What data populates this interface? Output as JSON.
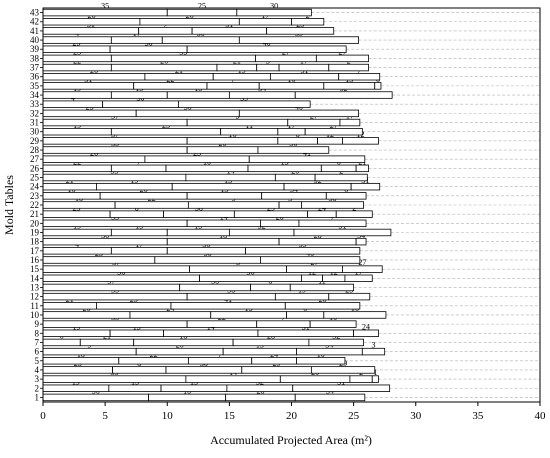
{
  "chart_data": {
    "type": "bar",
    "orientation": "horizontal",
    "stacked": true,
    "xlabel": "Accumulated Projected Area (m²)",
    "ylabel": "Mold Tables",
    "xlim": [
      0,
      40
    ],
    "xticks": [
      0,
      5,
      10,
      15,
      20,
      25,
      30,
      35,
      40
    ],
    "grid": "dashed horizontal",
    "categories": [
      "1",
      "2",
      "3",
      "4",
      "5",
      "6",
      "7",
      "8",
      "9",
      "10",
      "11",
      "12",
      "13",
      "14",
      "15",
      "16",
      "17",
      "18",
      "19",
      "20",
      "21",
      "22",
      "23",
      "24",
      "25",
      "26",
      "27",
      "28",
      "29",
      "30",
      "31",
      "32",
      "33",
      "34",
      "35",
      "36",
      "37",
      "38",
      "39",
      "40",
      "41",
      "42",
      "43"
    ],
    "rows": [
      {
        "table": "1",
        "segments": [
          {
            "id": "36",
            "value": 8.5
          },
          {
            "id": "18",
            "value": 6.2
          },
          {
            "id": "28",
            "value": 5.6
          },
          {
            "id": "34",
            "value": 5.6
          }
        ]
      },
      {
        "table": "2",
        "segments": [
          {
            "id": "19",
            "value": 5.3
          },
          {
            "id": "15",
            "value": 4.2
          },
          {
            "id": "15",
            "value": 5.3
          },
          {
            "id": "32",
            "value": 5.3
          },
          {
            "id": "31",
            "value": 7.8
          }
        ]
      },
      {
        "table": "3",
        "segments": [
          {
            "id": "33",
            "value": 11.5
          },
          {
            "id": "14",
            "value": 7.6
          },
          {
            "id": "20",
            "value": 5.6
          },
          {
            "id": "2",
            "value": 1.8
          },
          {
            "id": "1",
            "value": 0.5
          }
        ]
      },
      {
        "table": "4",
        "segments": [
          {
            "id": "23",
            "value": 5.6
          },
          {
            "id": "8",
            "value": 4.3
          },
          {
            "id": "38",
            "value": 6.1
          },
          {
            "id": "29",
            "value": 5.6
          },
          {
            "id": "29",
            "value": 5.1
          }
        ]
      },
      {
        "table": "5",
        "segments": [
          {
            "id": "18",
            "value": 6.1
          },
          {
            "id": "22",
            "value": 5.6
          },
          {
            "id": "7",
            "value": 5.1
          },
          {
            "id": "24",
            "value": 3.6
          },
          {
            "id": "10",
            "value": 3.9
          }
        ]
      },
      {
        "table": "6",
        "segments": [
          {
            "id": "9",
            "value": 7.5
          },
          {
            "id": "26",
            "value": 7.0
          },
          {
            "id": "13",
            "value": 5.9
          },
          {
            "id": "34",
            "value": 5.3
          },
          {
            "id": "3",
            "value": 1.8
          }
        ]
      },
      {
        "table": "7",
        "segments": [
          {
            "id": "6",
            "value": 3.0
          },
          {
            "id": "21",
            "value": 4.3
          },
          {
            "id": "18",
            "value": 8.0
          },
          {
            "id": "28",
            "value": 6.1
          },
          {
            "id": "32",
            "value": 4.4
          }
        ]
      },
      {
        "table": "8",
        "segments": [
          {
            "id": "19",
            "value": 5.4
          },
          {
            "id": "15",
            "value": 4.3
          },
          {
            "id": "14",
            "value": 7.6
          },
          {
            "id": "31",
            "value": 7.7
          },
          {
            "id": "24",
            "value": 2.0
          }
        ]
      },
      {
        "table": "9",
        "segments": [
          {
            "id": "33",
            "value": 11.6
          },
          {
            "id": "22",
            "value": 5.6
          },
          {
            "id": "7",
            "value": 4.3
          },
          {
            "id": "10",
            "value": 3.7
          }
        ]
      },
      {
        "table": "10",
        "segments": [
          {
            "id": "26",
            "value": 7.0
          },
          {
            "id": "24",
            "value": 6.5
          },
          {
            "id": "13",
            "value": 6.1
          },
          {
            "id": "6",
            "value": 3.0
          },
          {
            "id": "16",
            "value": 5.0
          }
        ]
      },
      {
        "table": "11",
        "segments": [
          {
            "id": "21",
            "value": 4.3
          },
          {
            "id": "25",
            "value": 6.0
          },
          {
            "id": "41",
            "value": 9.2
          },
          {
            "id": "20",
            "value": 6.0
          }
        ]
      },
      {
        "table": "12",
        "segments": [
          {
            "id": "35",
            "value": 11.6
          },
          {
            "id": "38",
            "value": 7.1
          },
          {
            "id": "19",
            "value": 4.3
          },
          {
            "id": "25",
            "value": 3.3
          }
        ]
      },
      {
        "table": "13",
        "segments": [
          {
            "id": "37",
            "value": 11.0
          },
          {
            "id": "38",
            "value": 5.7
          },
          {
            "id": "8",
            "value": 3.2
          },
          {
            "id": "11",
            "value": 5.1
          }
        ]
      },
      {
        "table": "14",
        "segments": [
          {
            "id": "36",
            "value": 12.6
          },
          {
            "id": "36",
            "value": 8.2
          },
          {
            "id": "12",
            "value": 1.7
          },
          {
            "id": "12",
            "value": 1.8
          },
          {
            "id": "17",
            "value": 2.2
          }
        ]
      },
      {
        "table": "15",
        "segments": [
          {
            "id": "37",
            "value": 11.8
          },
          {
            "id": "5",
            "value": 7.8
          },
          {
            "id": "27",
            "value": 4.5
          },
          {
            "id": "27",
            "value": 3.2
          }
        ]
      },
      {
        "table": "16",
        "segments": [
          {
            "id": "23",
            "value": 9.0
          },
          {
            "id": "30",
            "value": 8.5
          },
          {
            "id": "40",
            "value": 8.0
          }
        ]
      },
      {
        "table": "17",
        "segments": [
          {
            "id": "4",
            "value": 5.5
          },
          {
            "id": "17",
            "value": 4.5
          },
          {
            "id": "30",
            "value": 6.3
          },
          {
            "id": "39",
            "value": 9.2
          }
        ]
      },
      {
        "table": "18",
        "segments": [
          {
            "id": "36",
            "value": 10.0
          },
          {
            "id": "18",
            "value": 9.0
          },
          {
            "id": "28",
            "value": 6.2
          },
          {
            "id": "34",
            "value": 0.8
          }
        ]
      },
      {
        "table": "19",
        "segments": [
          {
            "id": "19",
            "value": 5.5
          },
          {
            "id": "15",
            "value": 4.5
          },
          {
            "id": "15",
            "value": 5.0
          },
          {
            "id": "32",
            "value": 5.2
          },
          {
            "id": "31",
            "value": 7.8
          }
        ]
      },
      {
        "table": "20",
        "segments": [
          {
            "id": "33",
            "value": 11.6
          },
          {
            "id": "14",
            "value": 5.9
          },
          {
            "id": "20",
            "value": 3.1
          },
          {
            "id": "7",
            "value": 5.4
          }
        ]
      },
      {
        "table": "21",
        "segments": [
          {
            "id": "23",
            "value": 5.4
          },
          {
            "id": "8",
            "value": 4.3
          },
          {
            "id": "38",
            "value": 5.7
          },
          {
            "id": "29",
            "value": 5.9
          },
          {
            "id": "24",
            "value": 2.3
          },
          {
            "id": "2",
            "value": 2.9
          }
        ]
      },
      {
        "table": "22",
        "segments": [
          {
            "id": "18",
            "value": 5.8
          },
          {
            "id": "22",
            "value": 5.9
          },
          {
            "id": "9",
            "value": 7.3
          },
          {
            "id": "3",
            "value": 1.8
          },
          {
            "id": "38",
            "value": 5.0
          }
        ]
      },
      {
        "table": "23",
        "segments": [
          {
            "id": "10",
            "value": 4.6
          },
          {
            "id": "26",
            "value": 7.0
          },
          {
            "id": "13",
            "value": 6.0
          },
          {
            "id": "34",
            "value": 5.2
          },
          {
            "id": "6",
            "value": 3.2
          }
        ]
      },
      {
        "table": "24",
        "segments": [
          {
            "id": "21",
            "value": 4.3
          },
          {
            "id": "19",
            "value": 6.1
          },
          {
            "id": "15",
            "value": 9.0
          },
          {
            "id": "32",
            "value": 5.4
          },
          {
            "id": "31",
            "value": 2.3
          }
        ]
      },
      {
        "table": "25",
        "segments": [
          {
            "id": "33",
            "value": 11.5
          },
          {
            "id": "14",
            "value": 7.2
          },
          {
            "id": "20",
            "value": 3.2
          },
          {
            "id": "2",
            "value": 4.2
          }
        ]
      },
      {
        "table": "26",
        "segments": [
          {
            "id": "22",
            "value": 5.5
          },
          {
            "id": "7",
            "value": 4.4
          },
          {
            "id": "10",
            "value": 6.6
          },
          {
            "id": "13",
            "value": 5.9
          },
          {
            "id": "6",
            "value": 2.8
          },
          {
            "id": "21",
            "value": 1.0
          }
        ]
      },
      {
        "table": "27",
        "segments": [
          {
            "id": "26",
            "value": 8.2
          },
          {
            "id": "25",
            "value": 8.4
          },
          {
            "id": "41",
            "value": 9.3
          }
        ]
      },
      {
        "table": "28",
        "segments": [
          {
            "id": "35",
            "value": 11.6
          },
          {
            "id": "20",
            "value": 5.7
          },
          {
            "id": "36",
            "value": 5.7
          }
        ]
      },
      {
        "table": "29",
        "segments": [
          {
            "id": "37",
            "value": 11.6
          },
          {
            "id": "16",
            "value": 7.3
          },
          {
            "id": "8",
            "value": 3.2
          },
          {
            "id": "12",
            "value": 2.0
          },
          {
            "id": "12",
            "value": 2.9
          }
        ]
      },
      {
        "table": "30",
        "segments": [
          {
            "id": "19",
            "value": 5.5
          },
          {
            "id": "25",
            "value": 8.8
          },
          {
            "id": "11",
            "value": 4.6
          },
          {
            "id": "17",
            "value": 2.2
          },
          {
            "id": "27",
            "value": 4.6
          }
        ]
      },
      {
        "table": "31",
        "segments": [
          {
            "id": "37",
            "value": 11.6
          },
          {
            "id": "5",
            "value": 8.1
          },
          {
            "id": "27",
            "value": 4.2
          },
          {
            "id": "17",
            "value": 1.6
          }
        ]
      },
      {
        "table": "32",
        "segments": [
          {
            "id": "23",
            "value": 7.5
          },
          {
            "id": "30",
            "value": 8.3
          },
          {
            "id": "40",
            "value": 9.6
          }
        ]
      },
      {
        "table": "33",
        "segments": [
          {
            "id": "4",
            "value": 4.8
          },
          {
            "id": "30",
            "value": 6.1
          },
          {
            "id": "39",
            "value": 10.6
          }
        ]
      },
      {
        "table": "34",
        "segments": [
          {
            "id": "19",
            "value": 5.5
          },
          {
            "id": "15",
            "value": 4.5
          },
          {
            "id": "15",
            "value": 5.0
          },
          {
            "id": "34",
            "value": 5.3
          },
          {
            "id": "32",
            "value": 7.8
          }
        ]
      },
      {
        "table": "35",
        "segments": [
          {
            "id": "31",
            "value": 7.3
          },
          {
            "id": "22",
            "value": 5.9
          },
          {
            "id": "7",
            "value": 4.2
          },
          {
            "id": "10",
            "value": 5.2
          },
          {
            "id": "13",
            "value": 4.1
          },
          {
            "id": "6",
            "value": 0.5
          }
        ]
      },
      {
        "table": "36",
        "segments": [
          {
            "id": "26",
            "value": 8.2
          },
          {
            "id": "21",
            "value": 5.5
          },
          {
            "id": "19",
            "value": 4.6
          },
          {
            "id": "31",
            "value": 5.5
          },
          {
            "id": "7",
            "value": 3.3
          }
        ]
      },
      {
        "table": "37",
        "segments": [
          {
            "id": "22",
            "value": 5.5
          },
          {
            "id": "26",
            "value": 8.5
          },
          {
            "id": "21",
            "value": 3.2
          },
          {
            "id": "3",
            "value": 1.8
          },
          {
            "id": "17",
            "value": 4.0
          },
          {
            "id": "2",
            "value": 3.2
          }
        ]
      },
      {
        "table": "38",
        "segments": [
          {
            "id": "25",
            "value": 5.5
          },
          {
            "id": "35",
            "value": 11.6
          },
          {
            "id": "27",
            "value": 4.9
          },
          {
            "id": "27",
            "value": 4.2
          }
        ]
      },
      {
        "table": "39",
        "segments": [
          {
            "id": "25",
            "value": 5.4
          },
          {
            "id": "30",
            "value": 6.2
          },
          {
            "id": "40",
            "value": 12.8
          }
        ]
      },
      {
        "table": "40",
        "segments": [
          {
            "id": "4",
            "value": 5.5
          },
          {
            "id": "17",
            "value": 4.1
          },
          {
            "id": "30",
            "value": 6.2
          },
          {
            "id": "39",
            "value": 9.6
          }
        ]
      },
      {
        "table": "41",
        "segments": [
          {
            "id": "31",
            "value": 7.7
          },
          {
            "id": "7",
            "value": 4.3
          },
          {
            "id": "31",
            "value": 6.0
          },
          {
            "id": "25",
            "value": 5.4
          }
        ]
      },
      {
        "table": "42",
        "segments": [
          {
            "id": "26",
            "value": 7.8
          },
          {
            "id": "26",
            "value": 8.0
          },
          {
            "id": "17",
            "value": 4.2
          },
          {
            "id": "2",
            "value": 2.6
          }
        ]
      },
      {
        "table": "43",
        "segments": [
          {
            "id": "35",
            "value": 10.0
          },
          {
            "id": "25",
            "value": 5.6
          },
          {
            "id": "30",
            "value": 6.0
          }
        ]
      }
    ]
  }
}
